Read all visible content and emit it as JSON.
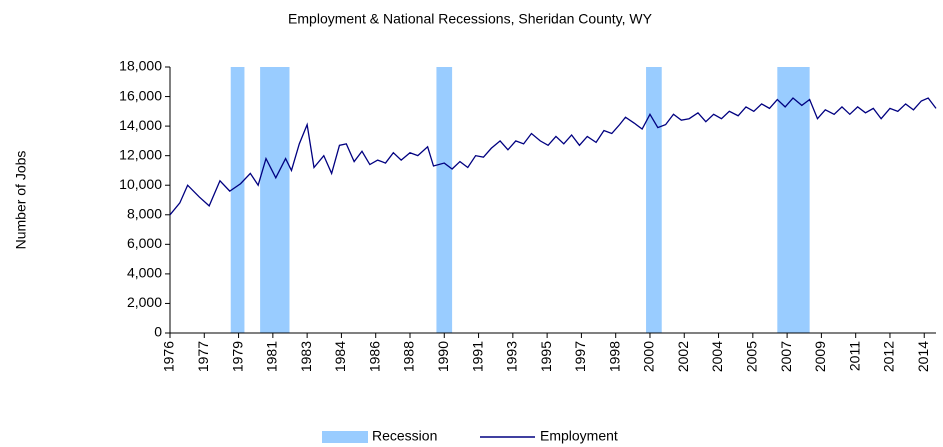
{
  "chart_data": {
    "type": "line",
    "title": "Employment & National Recessions, Sheridan County, WY",
    "y_label": "Number of Jobs",
    "xlim": [
      1976,
      2015.1
    ],
    "ylim": [
      0,
      18000
    ],
    "yticks": [
      0,
      {
        "value": 2000,
        "label": "2,000"
      },
      {
        "value": 4000,
        "label": "4,000"
      },
      {
        "value": 6000,
        "label": "6,000"
      },
      {
        "value": 8000,
        "label": "8,000"
      },
      {
        "value": 10000,
        "label": "10,000"
      },
      {
        "value": 12000,
        "label": "12,000"
      },
      {
        "value": 14000,
        "label": "14,000"
      },
      {
        "value": 16000,
        "label": "16,000"
      },
      {
        "value": 18000,
        "label": "18,000"
      }
    ],
    "xticks": [
      {
        "value": 1976,
        "label": "1976"
      },
      {
        "value": 1977.75,
        "label": "1977"
      },
      {
        "value": 1979.5,
        "label": "1979"
      },
      {
        "value": 1981.25,
        "label": "1981"
      },
      {
        "value": 1983,
        "label": "1983"
      },
      {
        "value": 1984.75,
        "label": "1984"
      },
      {
        "value": 1986.5,
        "label": "1986"
      },
      {
        "value": 1988.25,
        "label": "1988"
      },
      {
        "value": 1990,
        "label": "1990"
      },
      {
        "value": 1991.75,
        "label": "1991"
      },
      {
        "value": 1993.5,
        "label": "1993"
      },
      {
        "value": 1995.25,
        "label": "1995"
      },
      {
        "value": 1997,
        "label": "1997"
      },
      {
        "value": 1998.75,
        "label": "1998"
      },
      {
        "value": 2000.5,
        "label": "2000"
      },
      {
        "value": 2002.25,
        "label": "2002"
      },
      {
        "value": 2004,
        "label": "2004"
      },
      {
        "value": 2005.75,
        "label": "2005"
      },
      {
        "value": 2007.5,
        "label": "2007"
      },
      {
        "value": 2009.25,
        "label": "2009"
      },
      {
        "value": 2011,
        "label": "2011"
      },
      {
        "value": 2012.75,
        "label": "2012"
      },
      {
        "value": 2014.5,
        "label": "2014"
      }
    ],
    "recessions": {
      "name": "Recession",
      "color": "#99ccff",
      "periods": [
        [
          1979.1,
          1979.8
        ],
        [
          1980.6,
          1982.1
        ],
        [
          1989.6,
          1990.4
        ],
        [
          2000.3,
          2001.1
        ],
        [
          2007.0,
          2008.65
        ]
      ]
    },
    "series": [
      {
        "name": "Employment",
        "color": "#000080",
        "x": [
          1976.0,
          1976.5,
          1976.9,
          1977.5,
          1978.0,
          1978.55,
          1979.05,
          1979.6,
          1980.1,
          1980.5,
          1980.9,
          1981.4,
          1981.9,
          1982.2,
          1982.6,
          1983.0,
          1983.35,
          1983.85,
          1984.25,
          1984.65,
          1985.0,
          1985.4,
          1985.8,
          1986.2,
          1986.6,
          1987.0,
          1987.4,
          1987.8,
          1988.25,
          1988.65,
          1989.15,
          1989.45,
          1990.0,
          1990.4,
          1990.8,
          1991.2,
          1991.6,
          1992.0,
          1992.4,
          1992.85,
          1993.25,
          1993.65,
          1994.05,
          1994.45,
          1994.9,
          1995.3,
          1995.7,
          1996.1,
          1996.5,
          1996.9,
          1997.3,
          1997.75,
          1998.15,
          1998.55,
          1998.95,
          1999.25,
          1999.7,
          2000.1,
          2000.5,
          2000.9,
          2001.3,
          2001.7,
          2002.1,
          2002.5,
          2002.95,
          2003.35,
          2003.75,
          2004.15,
          2004.55,
          2005.0,
          2005.4,
          2005.8,
          2006.2,
          2006.6,
          2007.0,
          2007.4,
          2007.8,
          2008.25,
          2008.65,
          2009.05,
          2009.45,
          2009.9,
          2010.3,
          2010.7,
          2011.1,
          2011.5,
          2011.9,
          2012.3,
          2012.75,
          2013.15,
          2013.55,
          2013.95,
          2014.35,
          2014.7,
          2015.1
        ],
        "values": [
          8000,
          8800,
          10000,
          9200,
          8600,
          10300,
          9600,
          10100,
          10800,
          10000,
          11800,
          10500,
          11800,
          11000,
          12800,
          14100,
          11200,
          12000,
          10800,
          12700,
          12800,
          11600,
          12300,
          11400,
          11700,
          11500,
          12200,
          11700,
          12200,
          12000,
          12600,
          11300,
          11500,
          11100,
          11600,
          11200,
          12000,
          11900,
          12500,
          13000,
          12400,
          13000,
          12800,
          13500,
          13000,
          12700,
          13300,
          12800,
          13400,
          12700,
          13300,
          12900,
          13700,
          13500,
          14100,
          14600,
          14200,
          13800,
          14800,
          13900,
          14100,
          14800,
          14400,
          14500,
          14900,
          14300,
          14800,
          14500,
          15000,
          14700,
          15300,
          15000,
          15500,
          15200,
          15800,
          15300,
          15900,
          15400,
          15800,
          14500,
          15100,
          14800,
          15300,
          14800,
          15300,
          14900,
          15200,
          14500,
          15200,
          15000,
          15500,
          15100,
          15700,
          15900,
          15200
        ]
      }
    ]
  }
}
